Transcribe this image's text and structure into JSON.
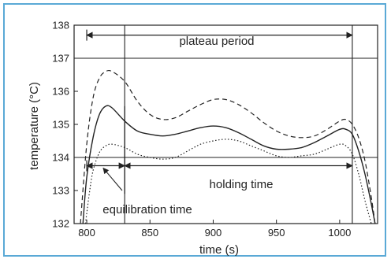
{
  "frame_color": "#5aa9d6",
  "chart_data": {
    "type": "line",
    "xlabel": "time (s)",
    "ylabel": "temperature (°C)",
    "xlim": [
      790,
      1030
    ],
    "ylim": [
      132,
      138
    ],
    "xticks": [
      800,
      850,
      900,
      950,
      1000
    ],
    "yticks": [
      132,
      133,
      134,
      135,
      136,
      137,
      138
    ],
    "reference_lines": {
      "horizontal": [
        134,
        137
      ],
      "vertical": [
        830,
        1010
      ]
    },
    "series": [
      {
        "style": "dashed",
        "x": [
          795,
          800,
          805,
          810,
          815,
          820,
          830,
          840,
          850,
          860,
          870,
          880,
          890,
          900,
          910,
          920,
          930,
          940,
          950,
          960,
          970,
          980,
          990,
          1000,
          1005,
          1010,
          1015,
          1020,
          1025,
          1028
        ],
        "y": [
          132.0,
          134.4,
          135.8,
          136.4,
          136.6,
          136.6,
          136.3,
          135.7,
          135.3,
          135.15,
          135.2,
          135.4,
          135.6,
          135.75,
          135.75,
          135.6,
          135.35,
          135.05,
          134.8,
          134.65,
          134.6,
          134.65,
          134.85,
          135.1,
          135.15,
          135.0,
          134.6,
          133.9,
          132.8,
          132.0
        ]
      },
      {
        "style": "solid",
        "x": [
          797,
          800,
          805,
          810,
          815,
          820,
          830,
          840,
          850,
          860,
          870,
          880,
          890,
          900,
          910,
          920,
          930,
          940,
          950,
          960,
          970,
          980,
          990,
          1000,
          1005,
          1010,
          1015,
          1020,
          1025,
          1028
        ],
        "y": [
          132.0,
          133.4,
          134.6,
          135.3,
          135.55,
          135.5,
          135.1,
          134.8,
          134.7,
          134.65,
          134.7,
          134.8,
          134.9,
          134.95,
          134.9,
          134.75,
          134.55,
          134.35,
          134.25,
          134.25,
          134.3,
          134.45,
          134.65,
          134.85,
          134.85,
          134.7,
          134.2,
          133.5,
          132.6,
          132.0
        ]
      },
      {
        "style": "dotted",
        "x": [
          799,
          802,
          805,
          810,
          815,
          820,
          830,
          840,
          850,
          860,
          870,
          880,
          890,
          900,
          910,
          920,
          930,
          940,
          950,
          960,
          970,
          980,
          990,
          1000,
          1005,
          1010,
          1015,
          1020,
          1025
        ],
        "y": [
          132.0,
          132.9,
          133.6,
          134.15,
          134.35,
          134.4,
          134.3,
          134.1,
          134.0,
          133.95,
          134.0,
          134.2,
          134.4,
          134.5,
          134.55,
          134.5,
          134.35,
          134.2,
          134.05,
          134.0,
          134.05,
          134.1,
          134.25,
          134.4,
          134.35,
          134.1,
          133.5,
          132.7,
          132.0
        ]
      }
    ],
    "annotations": [
      {
        "id": "plateau",
        "label": "plateau period",
        "from": 800,
        "to": 1010,
        "y": 137.7
      },
      {
        "id": "holding",
        "label": "holding time",
        "from": 830,
        "to": 1010,
        "y": 133.75
      },
      {
        "id": "equilibration",
        "label": "equilibration time",
        "from": 800,
        "to": 830,
        "y": 133.75
      }
    ]
  }
}
